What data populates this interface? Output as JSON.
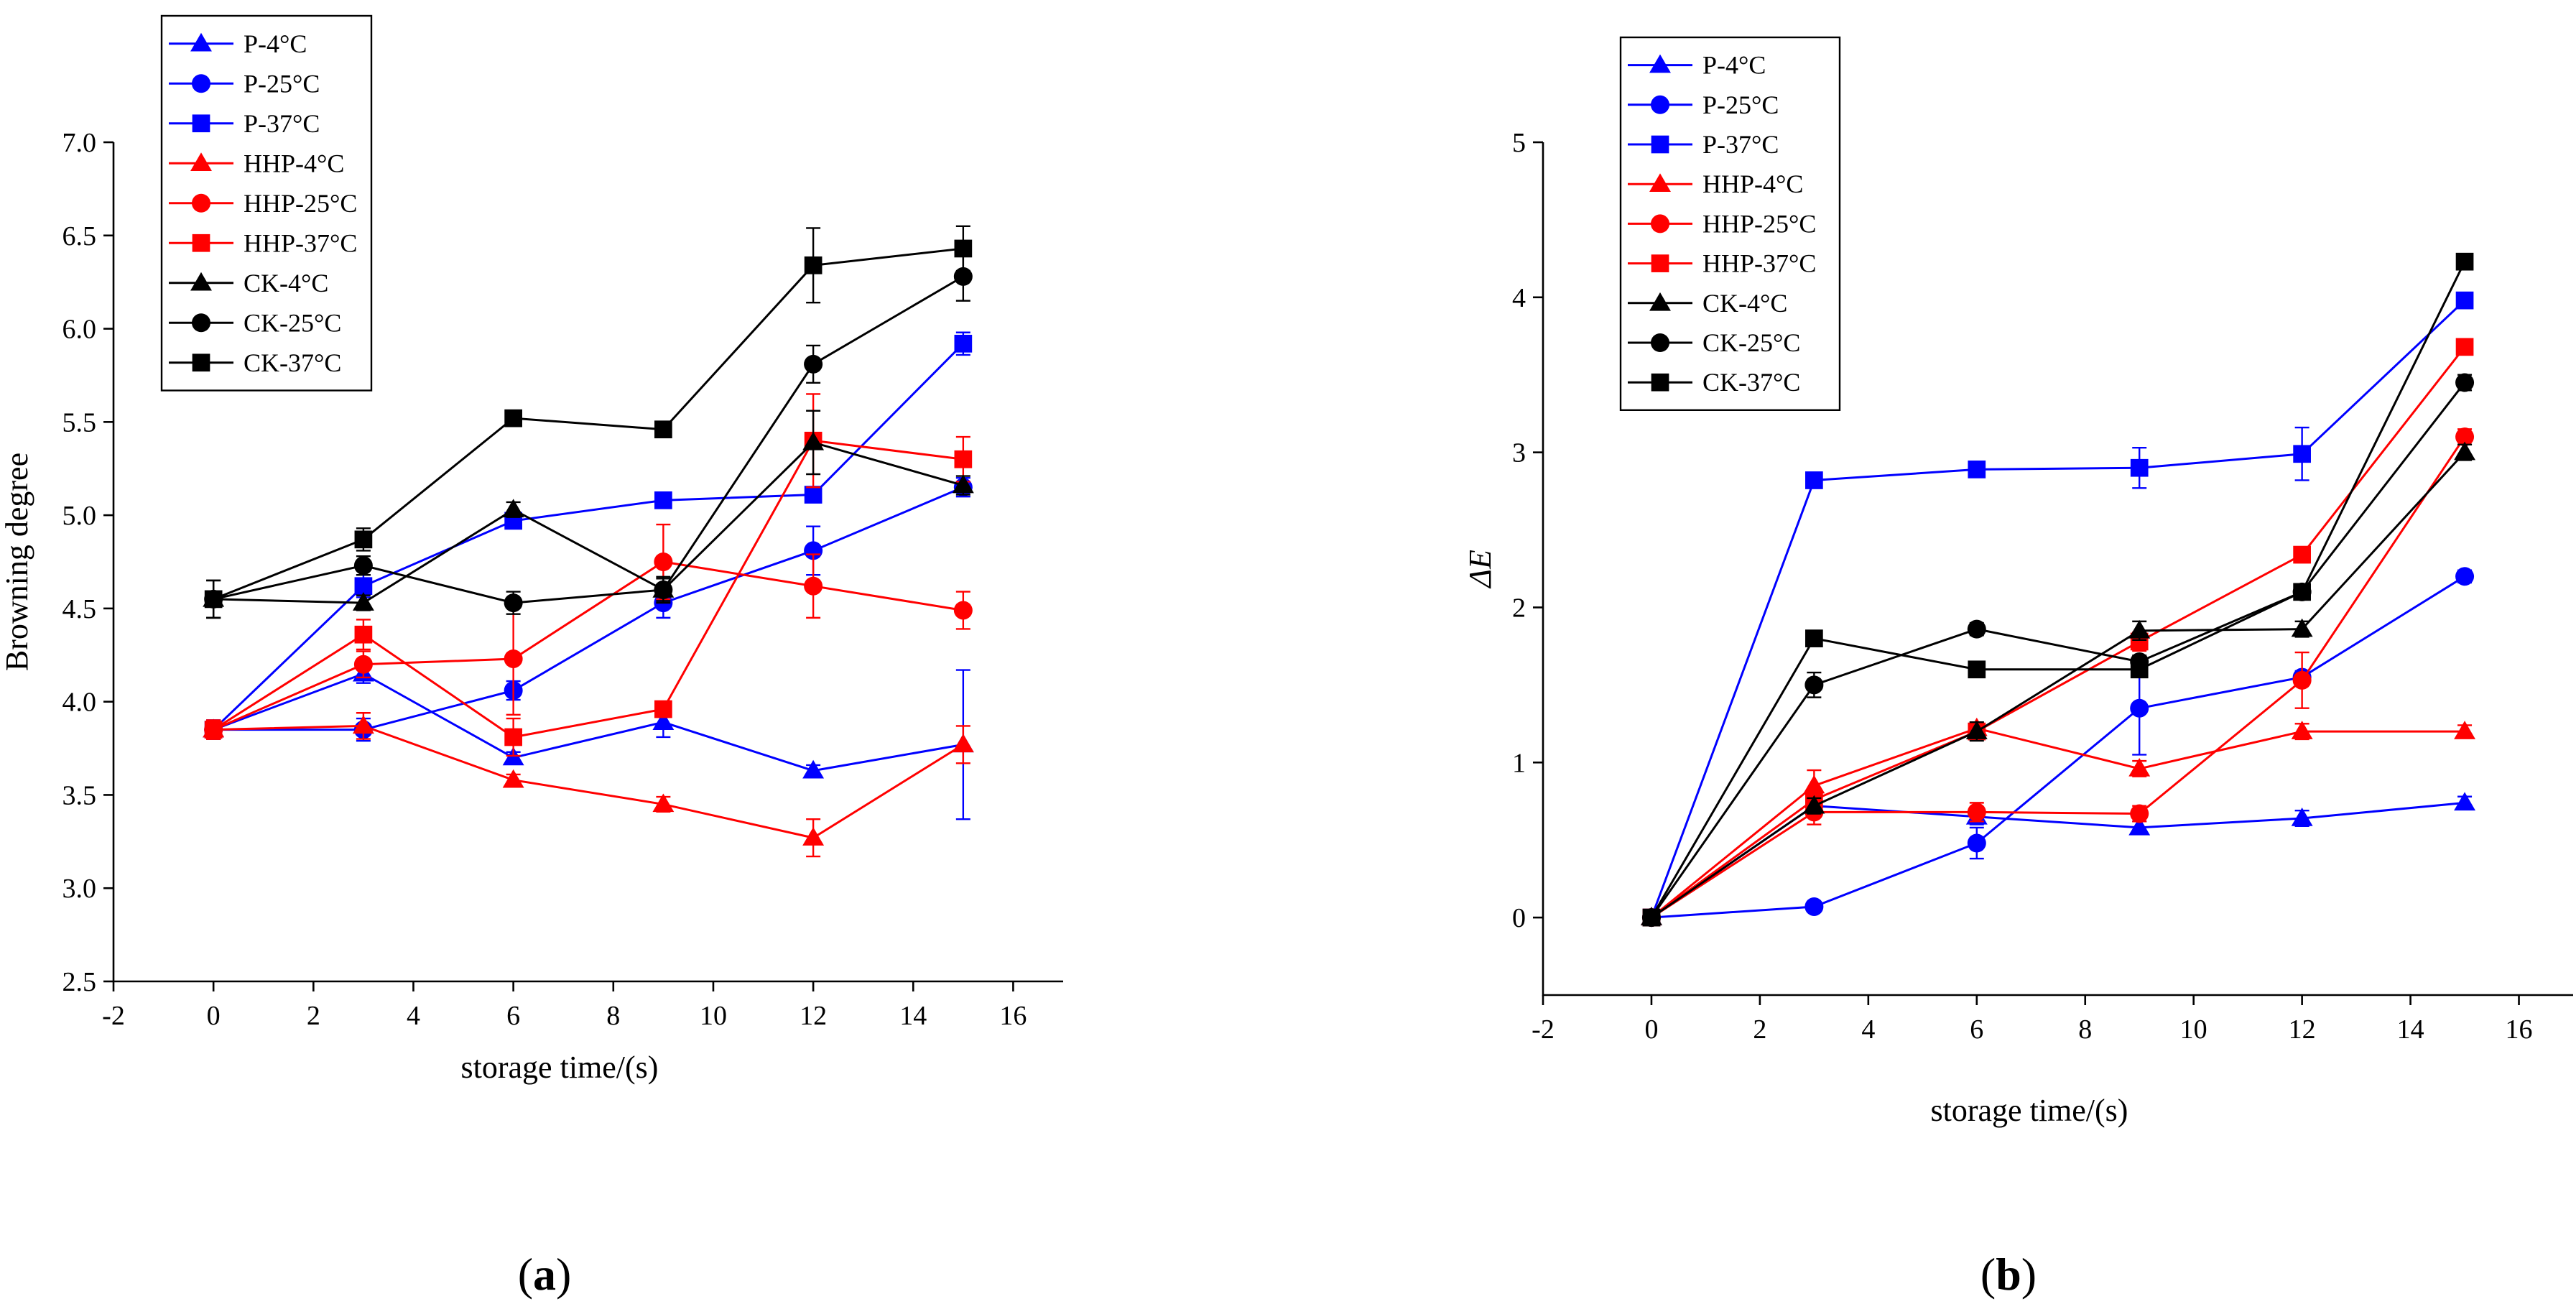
{
  "chart_data": [
    {
      "type": "line",
      "panel_label": "a",
      "xlabel": "storage time/(s)",
      "ylabel": "Browning degree",
      "xlim": [
        -2,
        17
      ],
      "ylim": [
        2.5,
        7.0
      ],
      "xticks": [
        -2,
        0,
        2,
        4,
        6,
        8,
        10,
        12,
        14,
        16
      ],
      "yticks": [
        2.5,
        3.0,
        3.5,
        4.0,
        4.5,
        5.0,
        5.5,
        6.0,
        6.5,
        7.0
      ],
      "ytick_decimals": 1,
      "legend_position": "top-left",
      "x": [
        0,
        3,
        6,
        9,
        12,
        15
      ],
      "series": [
        {
          "name": "P-4°C",
          "color": "#0000ff",
          "marker": "triangle",
          "values": [
            3.85,
            4.15,
            3.7,
            3.89,
            3.63,
            3.77
          ],
          "errors": [
            0.05,
            0.05,
            0.03,
            0.08,
            0.03,
            0.4
          ]
        },
        {
          "name": "P-25°C",
          "color": "#0000ff",
          "marker": "circle",
          "values": [
            3.85,
            3.85,
            4.06,
            4.53,
            4.81,
            5.15
          ],
          "errors": [
            0.05,
            0.06,
            0.05,
            0.08,
            0.13,
            0.05
          ]
        },
        {
          "name": "P-37°C",
          "color": "#0000ff",
          "marker": "square",
          "values": [
            3.85,
            4.62,
            4.97,
            5.08,
            5.11,
            5.92
          ],
          "errors": [
            0.05,
            0.06,
            0.03,
            0.03,
            0.03,
            0.06
          ]
        },
        {
          "name": "HHP-4°C",
          "color": "#ff0000",
          "marker": "triangle",
          "values": [
            3.85,
            3.87,
            3.58,
            3.45,
            3.27,
            3.77
          ],
          "errors": [
            0.05,
            0.07,
            0.03,
            0.04,
            0.1,
            0.1
          ]
        },
        {
          "name": "HHP-25°C",
          "color": "#ff0000",
          "marker": "circle",
          "values": [
            3.85,
            4.2,
            4.23,
            4.75,
            4.62,
            4.49
          ],
          "errors": [
            0.05,
            0.07,
            0.3,
            0.2,
            0.17,
            0.1
          ]
        },
        {
          "name": "HHP-37°C",
          "color": "#ff0000",
          "marker": "square",
          "values": [
            3.85,
            4.36,
            3.81,
            3.96,
            5.4,
            5.3
          ],
          "errors": [
            0.05,
            0.08,
            0.1,
            0.04,
            0.25,
            0.12
          ]
        },
        {
          "name": "CK-4°C",
          "color": "#000000",
          "marker": "triangle",
          "values": [
            4.55,
            4.53,
            5.03,
            4.6,
            5.39,
            5.16
          ],
          "errors": [
            0.1,
            0.04,
            0.04,
            0.07,
            0.17,
            0.05
          ]
        },
        {
          "name": "CK-25°C",
          "color": "#000000",
          "marker": "circle",
          "values": [
            4.55,
            4.73,
            4.53,
            4.6,
            5.81,
            6.28
          ],
          "errors": [
            0.1,
            0.05,
            0.06,
            0.06,
            0.1,
            0.13
          ]
        },
        {
          "name": "CK-37°C",
          "color": "#000000",
          "marker": "square",
          "values": [
            4.55,
            4.87,
            5.52,
            5.46,
            6.34,
            6.43
          ],
          "errors": [
            0.1,
            0.06,
            0.02,
            0.02,
            0.2,
            0.12
          ]
        }
      ]
    },
    {
      "type": "line",
      "panel_label": "b",
      "xlabel": "storage time/(s)",
      "ylabel": "ΔE",
      "xlim": [
        -2,
        17
      ],
      "ylim": [
        -0.5,
        5
      ],
      "xticks": [
        -2,
        0,
        2,
        4,
        6,
        8,
        10,
        12,
        14,
        16
      ],
      "yticks": [
        0,
        1,
        2,
        3,
        4,
        5
      ],
      "ytick_decimals": 0,
      "legend_position": "top-left",
      "x": [
        0,
        3,
        6,
        9,
        12,
        15
      ],
      "series": [
        {
          "name": "P-4°C",
          "color": "#0000ff",
          "marker": "triangle",
          "values": [
            0,
            0.72,
            0.65,
            0.58,
            0.64,
            0.74
          ],
          "errors": [
            0.02,
            0.03,
            0.05,
            0.04,
            0.05,
            0.04
          ]
        },
        {
          "name": "P-25°C",
          "color": "#0000ff",
          "marker": "circle",
          "values": [
            0,
            0.07,
            0.48,
            1.35,
            1.55,
            2.2
          ],
          "errors": [
            0.02,
            0.03,
            0.1,
            0.3,
            0.04,
            0.04
          ]
        },
        {
          "name": "P-37°C",
          "color": "#0000ff",
          "marker": "square",
          "values": [
            0,
            2.82,
            2.89,
            2.9,
            2.99,
            3.98
          ],
          "errors": [
            0.02,
            0.03,
            0.03,
            0.13,
            0.17,
            0.05
          ]
        },
        {
          "name": "HHP-4°C",
          "color": "#ff0000",
          "marker": "triangle",
          "values": [
            0,
            0.85,
            1.22,
            0.96,
            1.2,
            1.2
          ],
          "errors": [
            0.02,
            0.1,
            0.04,
            0.05,
            0.05,
            0.04
          ]
        },
        {
          "name": "HHP-25°C",
          "color": "#ff0000",
          "marker": "circle",
          "values": [
            0,
            0.68,
            0.68,
            0.67,
            1.53,
            3.1
          ],
          "errors": [
            0.02,
            0.08,
            0.06,
            0.05,
            0.18,
            0.05
          ]
        },
        {
          "name": "HHP-37°C",
          "color": "#ff0000",
          "marker": "square",
          "values": [
            0,
            0.76,
            1.2,
            1.78,
            2.34,
            3.68
          ],
          "errors": [
            0.02,
            0.06,
            0.05,
            0.06,
            0.05,
            0.05
          ]
        },
        {
          "name": "CK-4°C",
          "color": "#000000",
          "marker": "triangle",
          "values": [
            0,
            0.72,
            1.2,
            1.85,
            1.86,
            3.0
          ],
          "errors": [
            0.02,
            0.05,
            0.06,
            0.06,
            0.05,
            0.05
          ]
        },
        {
          "name": "CK-25°C",
          "color": "#000000",
          "marker": "circle",
          "values": [
            0,
            1.5,
            1.86,
            1.65,
            2.1,
            3.45
          ],
          "errors": [
            0.02,
            0.08,
            0.04,
            0.04,
            0.04,
            0.05
          ]
        },
        {
          "name": "CK-37°C",
          "color": "#000000",
          "marker": "square",
          "values": [
            0,
            1.8,
            1.6,
            1.6,
            2.1,
            4.23
          ],
          "errors": [
            0.02,
            0.04,
            0.04,
            0.04,
            0.04,
            0.05
          ]
        }
      ]
    }
  ]
}
